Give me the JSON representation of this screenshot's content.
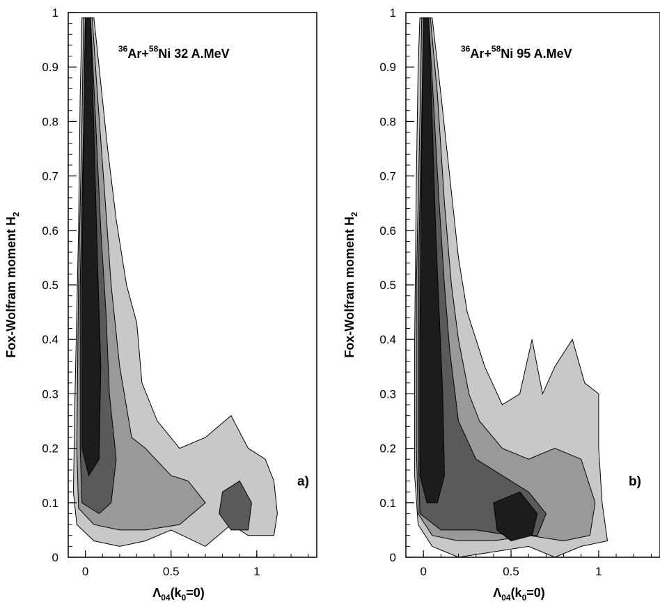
{
  "chart_data": [
    {
      "type": "heatmap",
      "panel_label": "a)",
      "title_parts": {
        "a_mass": "36",
        "a_symbol": "Ar",
        "plus": "+",
        "b_mass": "58",
        "b_symbol": "Ni",
        "rest": " 32 A.MeV"
      },
      "xlabel": {
        "main": "Λ",
        "sub1": "04",
        "mid": "(k",
        "sub2": "0",
        "end": "=0)"
      },
      "ylabel": {
        "main": "Fox-Wolfram moment H",
        "sub": "2"
      },
      "xlim": [
        -0.1,
        1.35
      ],
      "ylim": [
        0,
        1
      ],
      "xticks": [
        0,
        0.5,
        1
      ],
      "xtick_labels": [
        "0",
        "0.5",
        "1"
      ],
      "yticks": [
        0,
        0.1,
        0.2,
        0.3,
        0.4,
        0.5,
        0.6,
        0.7,
        0.8,
        0.9,
        1
      ],
      "ytick_labels": [
        "0",
        "0.1",
        "0.2",
        "0.3",
        "0.4",
        "0.5",
        "0.6",
        "0.7",
        "0.8",
        "0.9",
        "1"
      ],
      "contour_levels": [
        {
          "level": 1,
          "color": "#c8c8c8",
          "boundary": [
            [
              -0.02,
              0.99
            ],
            [
              0.05,
              0.99
            ],
            [
              0.08,
              0.9
            ],
            [
              0.13,
              0.75
            ],
            [
              0.18,
              0.62
            ],
            [
              0.24,
              0.5
            ],
            [
              0.3,
              0.43
            ],
            [
              0.33,
              0.32
            ],
            [
              0.42,
              0.25
            ],
            [
              0.55,
              0.2
            ],
            [
              0.7,
              0.22
            ],
            [
              0.85,
              0.26
            ],
            [
              0.95,
              0.2
            ],
            [
              1.05,
              0.18
            ],
            [
              1.1,
              0.14
            ],
            [
              1.12,
              0.08
            ],
            [
              1.1,
              0.04
            ],
            [
              0.95,
              0.04
            ],
            [
              0.85,
              0.06
            ],
            [
              0.7,
              0.02
            ],
            [
              0.5,
              0.05
            ],
            [
              0.35,
              0.03
            ],
            [
              0.2,
              0.02
            ],
            [
              0.05,
              0.03
            ],
            [
              -0.05,
              0.06
            ],
            [
              -0.07,
              0.12
            ],
            [
              -0.06,
              0.3
            ],
            [
              -0.04,
              0.6
            ],
            [
              -0.03,
              0.85
            ]
          ]
        },
        {
          "level": 2,
          "color": "#999999",
          "boundary": [
            [
              -0.01,
              0.99
            ],
            [
              0.04,
              0.99
            ],
            [
              0.07,
              0.85
            ],
            [
              0.11,
              0.68
            ],
            [
              0.15,
              0.5
            ],
            [
              0.2,
              0.35
            ],
            [
              0.27,
              0.22
            ],
            [
              0.35,
              0.2
            ],
            [
              0.5,
              0.15
            ],
            [
              0.6,
              0.14
            ],
            [
              0.7,
              0.1
            ],
            [
              0.55,
              0.06
            ],
            [
              0.35,
              0.05
            ],
            [
              0.2,
              0.05
            ],
            [
              0.05,
              0.06
            ],
            [
              -0.04,
              0.09
            ],
            [
              -0.05,
              0.2
            ],
            [
              -0.04,
              0.5
            ],
            [
              -0.02,
              0.8
            ]
          ]
        },
        {
          "level": 3,
          "color": "#5a5a5a",
          "boundary": [
            [
              0.0,
              0.99
            ],
            [
              0.03,
              0.99
            ],
            [
              0.06,
              0.8
            ],
            [
              0.09,
              0.6
            ],
            [
              0.12,
              0.45
            ],
            [
              0.14,
              0.3
            ],
            [
              0.18,
              0.18
            ],
            [
              0.15,
              0.1
            ],
            [
              0.08,
              0.08
            ],
            [
              -0.02,
              0.1
            ],
            [
              -0.03,
              0.2
            ],
            [
              -0.03,
              0.5
            ],
            [
              -0.01,
              0.8
            ]
          ]
        },
        {
          "level": 4,
          "color": "#1c1c1c",
          "boundary": [
            [
              0.0,
              0.99
            ],
            [
              0.03,
              0.99
            ],
            [
              0.05,
              0.78
            ],
            [
              0.07,
              0.55
            ],
            [
              0.09,
              0.35
            ],
            [
              0.08,
              0.18
            ],
            [
              0.02,
              0.15
            ],
            [
              -0.02,
              0.2
            ],
            [
              -0.02,
              0.5
            ],
            [
              -0.01,
              0.8
            ]
          ]
        },
        {
          "level": 3,
          "color": "#5a5a5a",
          "boundary": [
            [
              0.8,
              0.12
            ],
            [
              0.9,
              0.14
            ],
            [
              0.97,
              0.1
            ],
            [
              0.95,
              0.05
            ],
            [
              0.85,
              0.05
            ],
            [
              0.78,
              0.08
            ]
          ]
        }
      ]
    },
    {
      "type": "heatmap",
      "panel_label": "b)",
      "title_parts": {
        "a_mass": "36",
        "a_symbol": "Ar",
        "plus": "+",
        "b_mass": "58",
        "b_symbol": "Ni",
        "rest": " 95 A.MeV"
      },
      "xlabel": {
        "main": "Λ",
        "sub1": "04",
        "mid": "(k",
        "sub2": "0",
        "end": "=0)"
      },
      "ylabel": {
        "main": "Fox-Wolfram moment H",
        "sub": "2"
      },
      "xlim": [
        -0.1,
        1.35
      ],
      "ylim": [
        0,
        1
      ],
      "xticks": [
        0,
        0.5,
        1
      ],
      "xtick_labels": [
        "0",
        "0.5",
        "1"
      ],
      "yticks": [
        0,
        0.1,
        0.2,
        0.3,
        0.4,
        0.5,
        0.6,
        0.7,
        0.8,
        0.9,
        1
      ],
      "ytick_labels": [
        "0",
        "0.1",
        "0.2",
        "0.3",
        "0.4",
        "0.5",
        "0.6",
        "0.7",
        "0.8",
        "0.9",
        "1"
      ],
      "contour_levels": [
        {
          "level": 1,
          "color": "#c8c8c8",
          "boundary": [
            [
              -0.02,
              0.99
            ],
            [
              0.05,
              0.99
            ],
            [
              0.1,
              0.85
            ],
            [
              0.15,
              0.7
            ],
            [
              0.2,
              0.55
            ],
            [
              0.25,
              0.45
            ],
            [
              0.3,
              0.4
            ],
            [
              0.35,
              0.35
            ],
            [
              0.45,
              0.28
            ],
            [
              0.55,
              0.3
            ],
            [
              0.62,
              0.4
            ],
            [
              0.68,
              0.3
            ],
            [
              0.75,
              0.35
            ],
            [
              0.85,
              0.4
            ],
            [
              0.92,
              0.32
            ],
            [
              1.0,
              0.3
            ],
            [
              1.0,
              0.2
            ],
            [
              1.02,
              0.1
            ],
            [
              1.05,
              0.03
            ],
            [
              0.9,
              0.02
            ],
            [
              0.75,
              0.0
            ],
            [
              0.6,
              0.02
            ],
            [
              0.4,
              0.01
            ],
            [
              0.2,
              0.0
            ],
            [
              0.05,
              0.02
            ],
            [
              -0.03,
              0.06
            ],
            [
              -0.05,
              0.15
            ],
            [
              -0.05,
              0.4
            ],
            [
              -0.04,
              0.7
            ],
            [
              -0.03,
              0.9
            ]
          ]
        },
        {
          "level": 2,
          "color": "#999999",
          "boundary": [
            [
              -0.01,
              0.99
            ],
            [
              0.04,
              0.99
            ],
            [
              0.08,
              0.85
            ],
            [
              0.12,
              0.65
            ],
            [
              0.16,
              0.5
            ],
            [
              0.2,
              0.4
            ],
            [
              0.26,
              0.3
            ],
            [
              0.32,
              0.25
            ],
            [
              0.45,
              0.2
            ],
            [
              0.6,
              0.18
            ],
            [
              0.75,
              0.2
            ],
            [
              0.9,
              0.18
            ],
            [
              0.98,
              0.1
            ],
            [
              0.95,
              0.04
            ],
            [
              0.8,
              0.03
            ],
            [
              0.6,
              0.04
            ],
            [
              0.4,
              0.03
            ],
            [
              0.2,
              0.03
            ],
            [
              0.05,
              0.04
            ],
            [
              -0.03,
              0.08
            ],
            [
              -0.04,
              0.2
            ],
            [
              -0.04,
              0.5
            ],
            [
              -0.02,
              0.8
            ]
          ]
        },
        {
          "level": 3,
          "color": "#5a5a5a",
          "boundary": [
            [
              0.0,
              0.99
            ],
            [
              0.03,
              0.99
            ],
            [
              0.06,
              0.82
            ],
            [
              0.09,
              0.65
            ],
            [
              0.12,
              0.5
            ],
            [
              0.15,
              0.38
            ],
            [
              0.2,
              0.25
            ],
            [
              0.3,
              0.18
            ],
            [
              0.45,
              0.15
            ],
            [
              0.6,
              0.12
            ],
            [
              0.7,
              0.08
            ],
            [
              0.65,
              0.04
            ],
            [
              0.5,
              0.04
            ],
            [
              0.3,
              0.05
            ],
            [
              0.1,
              0.05
            ],
            [
              -0.02,
              0.08
            ],
            [
              -0.03,
              0.2
            ],
            [
              -0.03,
              0.5
            ],
            [
              -0.01,
              0.8
            ]
          ]
        },
        {
          "level": 4,
          "color": "#1c1c1c",
          "boundary": [
            [
              0.0,
              0.99
            ],
            [
              0.03,
              0.99
            ],
            [
              0.05,
              0.8
            ],
            [
              0.07,
              0.6
            ],
            [
              0.09,
              0.45
            ],
            [
              0.11,
              0.3
            ],
            [
              0.12,
              0.15
            ],
            [
              0.08,
              0.1
            ],
            [
              0.02,
              0.1
            ],
            [
              -0.02,
              0.15
            ],
            [
              -0.02,
              0.4
            ],
            [
              -0.01,
              0.75
            ]
          ]
        },
        {
          "level": 4,
          "color": "#1c1c1c",
          "boundary": [
            [
              0.4,
              0.1
            ],
            [
              0.55,
              0.12
            ],
            [
              0.65,
              0.08
            ],
            [
              0.62,
              0.04
            ],
            [
              0.5,
              0.03
            ],
            [
              0.42,
              0.05
            ]
          ]
        }
      ]
    }
  ]
}
